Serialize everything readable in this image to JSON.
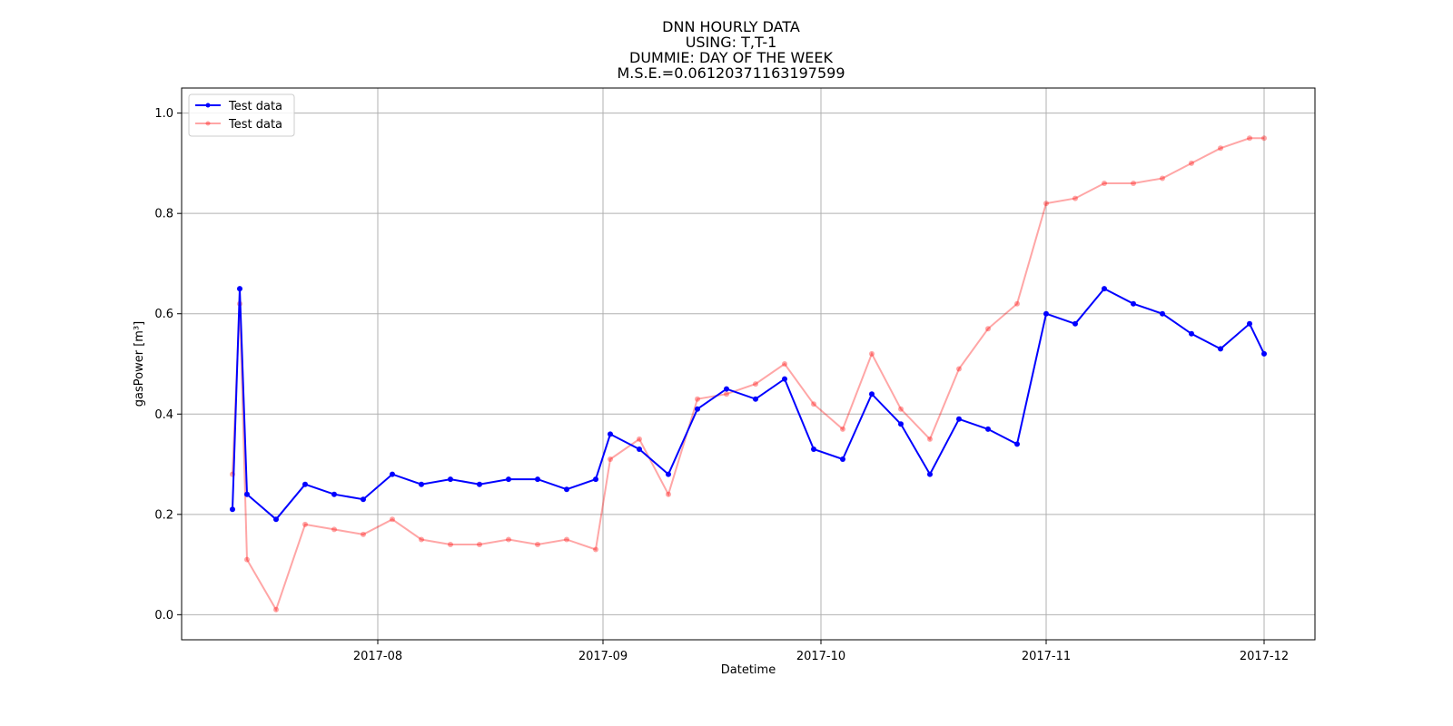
{
  "chart_data": {
    "type": "line",
    "title_lines": [
      "DNN HOURLY DATA",
      "USING: T,T-1",
      "DUMMIE: DAY OF THE WEEK",
      "M.S.E.=0.06120371163197599"
    ],
    "xlabel": "Datetime",
    "ylabel": "gasPower [m³]",
    "xlim": [
      "2017-07-05",
      "2017-12-08"
    ],
    "ylim": [
      -0.05,
      1.05
    ],
    "x_ticks": [
      "2017-08-01",
      "2017-09-01",
      "2017-10-01",
      "2017-11-01",
      "2017-12-01"
    ],
    "x_tick_labels": [
      "2017-08",
      "2017-09",
      "2017-10",
      "2017-11",
      "2017-12"
    ],
    "y_ticks": [
      0.0,
      0.2,
      0.4,
      0.6,
      0.8,
      1.0
    ],
    "y_tick_labels": [
      "0.0",
      "0.2",
      "0.4",
      "0.6",
      "0.8",
      "1.0"
    ],
    "grid": true,
    "legend_position": "top-left",
    "series": [
      {
        "name": "Test data",
        "color": "#0000ff",
        "opacity": 1.0,
        "x": [
          "2017-07-12",
          "2017-07-13",
          "2017-07-14",
          "2017-07-18",
          "2017-07-22",
          "2017-07-26",
          "2017-07-30",
          "2017-08-03",
          "2017-08-07",
          "2017-08-11",
          "2017-08-15",
          "2017-08-19",
          "2017-08-23",
          "2017-08-27",
          "2017-08-31",
          "2017-09-02",
          "2017-09-06",
          "2017-09-10",
          "2017-09-14",
          "2017-09-18",
          "2017-09-22",
          "2017-09-26",
          "2017-09-30",
          "2017-10-04",
          "2017-10-08",
          "2017-10-12",
          "2017-10-16",
          "2017-10-20",
          "2017-10-24",
          "2017-10-28",
          "2017-11-01",
          "2017-11-05",
          "2017-11-09",
          "2017-11-13",
          "2017-11-17",
          "2017-11-21",
          "2017-11-25",
          "2017-11-29",
          "2017-12-01"
        ],
        "y": [
          0.21,
          0.65,
          0.24,
          0.19,
          0.26,
          0.24,
          0.23,
          0.28,
          0.26,
          0.27,
          0.26,
          0.27,
          0.27,
          0.25,
          0.27,
          0.36,
          0.33,
          0.28,
          0.41,
          0.45,
          0.43,
          0.47,
          0.33,
          0.31,
          0.44,
          0.38,
          0.28,
          0.39,
          0.37,
          0.34,
          0.6,
          0.58,
          0.65,
          0.62,
          0.6,
          0.56,
          0.53,
          0.58,
          0.52
        ]
      },
      {
        "name": "Test data",
        "color": "#ff0000",
        "opacity": 0.35,
        "x": [
          "2017-07-12",
          "2017-07-13",
          "2017-07-14",
          "2017-07-18",
          "2017-07-22",
          "2017-07-26",
          "2017-07-30",
          "2017-08-03",
          "2017-08-07",
          "2017-08-11",
          "2017-08-15",
          "2017-08-19",
          "2017-08-23",
          "2017-08-27",
          "2017-08-31",
          "2017-09-02",
          "2017-09-06",
          "2017-09-10",
          "2017-09-14",
          "2017-09-18",
          "2017-09-22",
          "2017-09-26",
          "2017-09-30",
          "2017-10-04",
          "2017-10-08",
          "2017-10-12",
          "2017-10-16",
          "2017-10-20",
          "2017-10-24",
          "2017-10-28",
          "2017-11-01",
          "2017-11-05",
          "2017-11-09",
          "2017-11-13",
          "2017-11-17",
          "2017-11-21",
          "2017-11-25",
          "2017-11-29",
          "2017-12-01"
        ],
        "y": [
          0.28,
          0.62,
          0.11,
          0.01,
          0.18,
          0.17,
          0.16,
          0.19,
          0.15,
          0.14,
          0.14,
          0.15,
          0.14,
          0.15,
          0.13,
          0.31,
          0.35,
          0.24,
          0.43,
          0.44,
          0.46,
          0.5,
          0.42,
          0.37,
          0.52,
          0.41,
          0.35,
          0.49,
          0.57,
          0.62,
          0.82,
          0.83,
          0.86,
          0.86,
          0.87,
          0.9,
          0.93,
          0.95,
          0.95
        ]
      }
    ]
  }
}
